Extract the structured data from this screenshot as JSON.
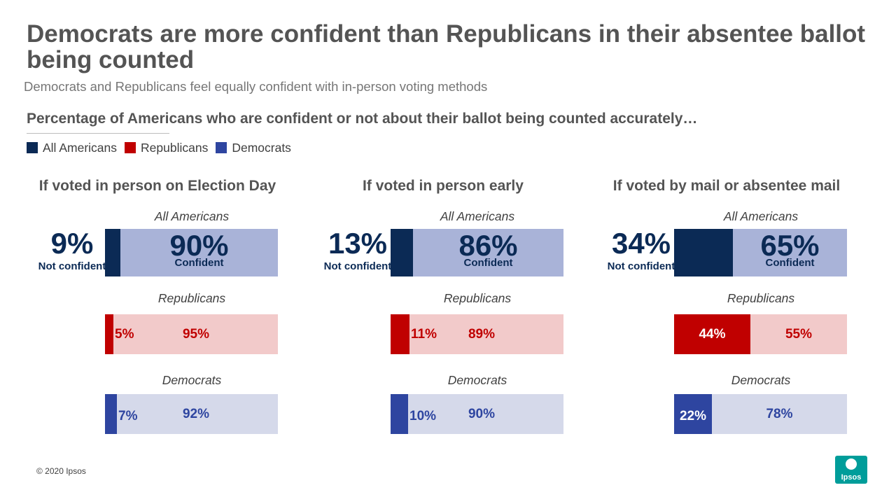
{
  "header": {
    "title": "Democrats are more confident than Republicans in their absentee ballot being counted",
    "subtitle": "Democrats and Republicans feel equally confident with in-person voting methods",
    "question": "Percentage of Americans who are confident or not about their ballot being counted accurately…"
  },
  "legend": [
    {
      "label": "All Americans",
      "color": "#0b2a55"
    },
    {
      "label": "Republicans",
      "color": "#c00000"
    },
    {
      "label": "Democrats",
      "color": "#2e45a0"
    }
  ],
  "chart_data": {
    "type": "bar",
    "orientation": "horizontal",
    "stacked": true,
    "series_names": [
      "Not confident",
      "Confident"
    ],
    "panels": [
      {
        "title": "If voted in person on Election Day",
        "groups": [
          {
            "name": "All Americans",
            "not_confident": 9,
            "confident": 90,
            "not_confident_label": "9%",
            "confident_label": "90%"
          },
          {
            "name": "Republicans",
            "not_confident": 5,
            "confident": 95,
            "not_confident_label": "5%",
            "confident_label": "95%"
          },
          {
            "name": "Democrats",
            "not_confident": 7,
            "confident": 92,
            "not_confident_label": "7%",
            "confident_label": "92%"
          }
        ]
      },
      {
        "title": "If voted in person early",
        "groups": [
          {
            "name": "All Americans",
            "not_confident": 13,
            "confident": 86,
            "not_confident_label": "13%",
            "confident_label": "86%"
          },
          {
            "name": "Republicans",
            "not_confident": 11,
            "confident": 89,
            "not_confident_label": "11%",
            "confident_label": "89%"
          },
          {
            "name": "Democrats",
            "not_confident": 10,
            "confident": 90,
            "not_confident_label": "10%",
            "confident_label": "90%"
          }
        ]
      },
      {
        "title": "If voted by mail or absentee mail",
        "groups": [
          {
            "name": "All Americans",
            "not_confident": 34,
            "confident": 65,
            "not_confident_label": "34%",
            "confident_label": "65%"
          },
          {
            "name": "Republicans",
            "not_confident": 44,
            "confident": 55,
            "not_confident_label": "44%",
            "confident_label": "55%"
          },
          {
            "name": "Democrats",
            "not_confident": 22,
            "confident": 78,
            "not_confident_label": "22%",
            "confident_label": "78%"
          }
        ]
      }
    ],
    "labels": {
      "not_confident": "Not confident",
      "confident": "Confident"
    },
    "colors": {
      "all_dark": "#0b2a55",
      "all_light": "#a9b3d8",
      "rep_dark": "#c00000",
      "rep_light": "#f2caca",
      "dem_dark": "#2e45a0",
      "dem_light": "#d5d9ea"
    }
  },
  "footer": {
    "copyright": "© 2020 Ipsos",
    "logo_text": "Ipsos"
  }
}
